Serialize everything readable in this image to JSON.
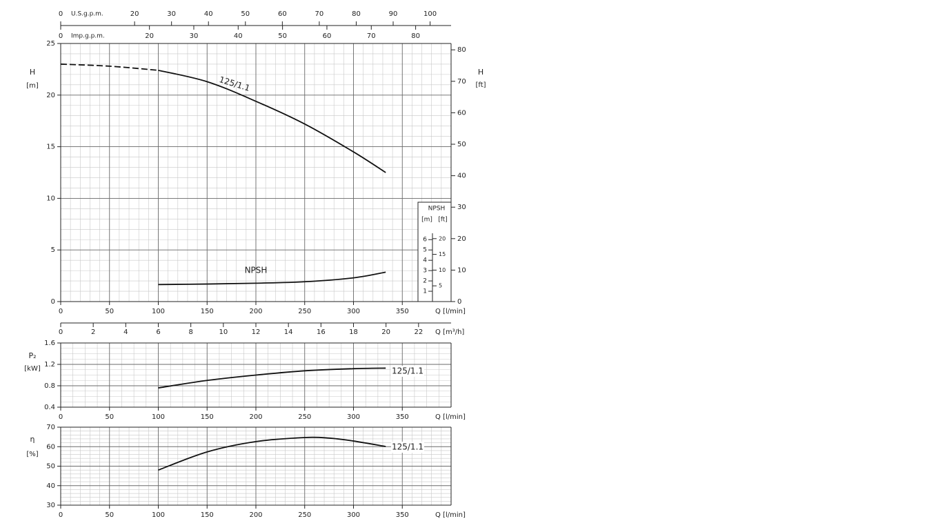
{
  "chart_data": [
    {
      "type": "line",
      "y_label": "H",
      "y_unit": "[m]",
      "y2_label": "H",
      "y2_unit": "[ft]",
      "x_label": "Q [l/min]",
      "xlim": [
        0,
        400
      ],
      "xticks": [
        0,
        50,
        100,
        150,
        200,
        250,
        300,
        350
      ],
      "ylim": [
        0,
        25
      ],
      "yticks": [
        0,
        5,
        10,
        15,
        20,
        25
      ],
      "y2lim": [
        0,
        82.02
      ],
      "y2ticks": [
        0,
        10,
        20,
        30,
        40,
        50,
        60,
        70,
        80
      ],
      "grid": true,
      "minor_divisions": 5,
      "x2_axes": [
        {
          "label": "U.S.g.p.m.",
          "xlim": [
            0,
            105.68
          ],
          "xticks": [
            0,
            20,
            30,
            40,
            50,
            60,
            70,
            80,
            90,
            100
          ],
          "side": "top-up"
        },
        {
          "label": "Imp.g.p.m.",
          "xlim": [
            0,
            87.99
          ],
          "xticks": [
            0,
            20,
            30,
            40,
            50,
            60,
            70,
            80
          ],
          "side": "top-down"
        },
        {
          "label": "Q [m³/h]",
          "xlim": [
            0,
            24
          ],
          "xticks": [
            0,
            2,
            4,
            6,
            8,
            10,
            12,
            14,
            16,
            18,
            20,
            22
          ],
          "side": "bottom"
        }
      ],
      "npsh_scale": {
        "title": "NPSH",
        "units": [
          "[m]",
          "[ft]"
        ],
        "m_ticks": [
          1,
          2,
          3,
          4,
          5,
          6
        ],
        "ft_ticks": [
          5,
          10,
          15,
          20
        ]
      },
      "series": [
        {
          "style": "dashed",
          "color": "#111111",
          "x": [
            0,
            50,
            100
          ],
          "values": [
            23.0,
            22.8,
            22.4
          ]
        },
        {
          "name": "125/1.1",
          "style": "solid",
          "color": "#111111",
          "x": [
            100,
            150,
            200,
            250,
            300,
            333
          ],
          "values": [
            22.4,
            21.3,
            19.4,
            17.2,
            14.5,
            12.5
          ]
        },
        {
          "name": "NPSH",
          "style": "solid",
          "color": "#111111",
          "x": [
            100,
            150,
            200,
            250,
            300,
            333
          ],
          "values": [
            1.65,
            1.7,
            1.78,
            1.92,
            2.3,
            2.85
          ]
        }
      ]
    },
    {
      "type": "line",
      "y_label": "P₂",
      "y_unit": "[kW]",
      "x_label": "Q [l/min]",
      "xlim": [
        0,
        400
      ],
      "xticks": [
        0,
        50,
        100,
        150,
        200,
        250,
        300,
        350
      ],
      "ylim": [
        0.4,
        1.6
      ],
      "yticks": [
        0.4,
        0.8,
        1.2,
        1.6
      ],
      "grid": true,
      "minor_divisions": 4,
      "series": [
        {
          "name": "125/1.1",
          "style": "solid",
          "color": "#111111",
          "x": [
            100,
            150,
            200,
            250,
            300,
            333
          ],
          "values": [
            0.76,
            0.9,
            1.0,
            1.08,
            1.12,
            1.13
          ]
        }
      ]
    },
    {
      "type": "line",
      "y_label": "η",
      "y_unit": "[%]",
      "x_label": "Q [l/min]",
      "xlim": [
        0,
        400
      ],
      "xticks": [
        0,
        50,
        100,
        150,
        200,
        250,
        300,
        350
      ],
      "ylim": [
        30,
        70
      ],
      "yticks": [
        30,
        40,
        50,
        60,
        70
      ],
      "grid": true,
      "minor_divisions": 5,
      "series": [
        {
          "name": "125/1.1",
          "style": "solid",
          "color": "#111111",
          "x": [
            100,
            150,
            200,
            250,
            275,
            300,
            333
          ],
          "values": [
            48,
            57.3,
            62.6,
            64.7,
            64.4,
            62.9,
            60.1
          ]
        }
      ]
    }
  ]
}
